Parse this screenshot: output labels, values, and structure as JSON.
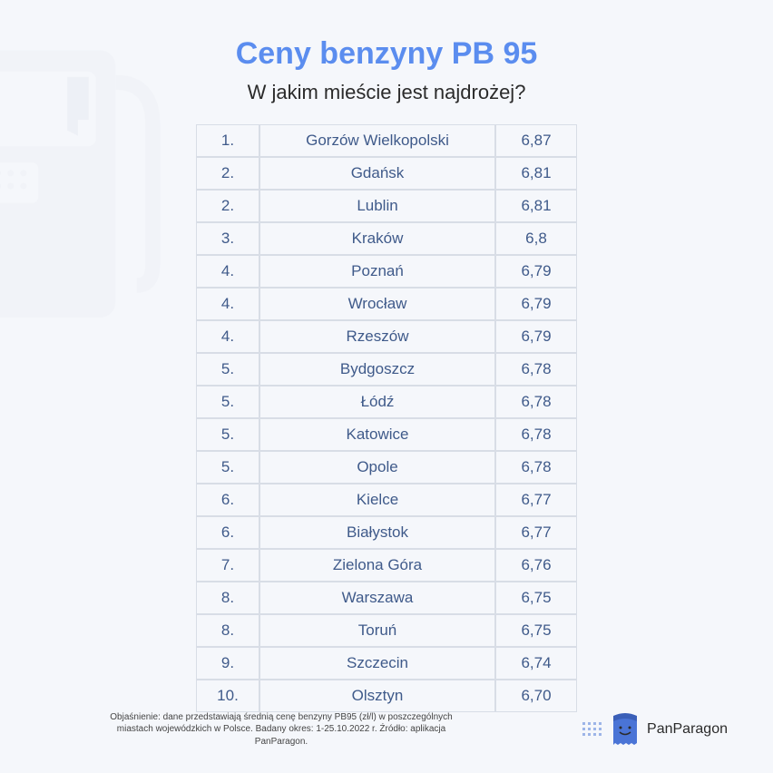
{
  "title": "Ceny benzyny PB 95",
  "subtitle": "W jakim mieście jest najdrożej?",
  "footnote": "Objaśnienie: dane przedstawiają średnią cenę benzyny PB95 (zł/l) w poszczególnych miastach wojewódzkich w Polsce. Badany okres: 1-25.10.2022 r. Źródło: aplikacja PanParagon.",
  "logo_text": "PanParagon",
  "colors": {
    "title": "#5b8def",
    "subtitle": "#2b2b2b",
    "cell_text": "#3f5a8a",
    "cell_border": "#d8dde6",
    "background": "#f5f7fb",
    "logo_accent": "#4a74d6"
  },
  "table": {
    "columns": [
      "rank",
      "city",
      "price"
    ],
    "rows": [
      {
        "rank": "1.",
        "city": "Gorzów Wielkopolski",
        "price": "6,87"
      },
      {
        "rank": "2.",
        "city": "Gdańsk",
        "price": "6,81"
      },
      {
        "rank": "2.",
        "city": "Lublin",
        "price": "6,81"
      },
      {
        "rank": "3.",
        "city": "Kraków",
        "price": "6,8"
      },
      {
        "rank": "4.",
        "city": "Poznań",
        "price": "6,79"
      },
      {
        "rank": "4.",
        "city": "Wrocław",
        "price": "6,79"
      },
      {
        "rank": "4.",
        "city": "Rzeszów",
        "price": "6,79"
      },
      {
        "rank": "5.",
        "city": "Bydgoszcz",
        "price": "6,78"
      },
      {
        "rank": "5.",
        "city": "Łódź",
        "price": "6,78"
      },
      {
        "rank": "5.",
        "city": "Katowice",
        "price": "6,78"
      },
      {
        "rank": "5.",
        "city": "Opole",
        "price": "6,78"
      },
      {
        "rank": "6.",
        "city": "Kielce",
        "price": "6,77"
      },
      {
        "rank": "6.",
        "city": "Białystok",
        "price": "6,77"
      },
      {
        "rank": "7.",
        "city": "Zielona Góra",
        "price": "6,76"
      },
      {
        "rank": "8.",
        "city": "Warszawa",
        "price": "6,75"
      },
      {
        "rank": "8.",
        "city": "Toruń",
        "price": "6,75"
      },
      {
        "rank": "9.",
        "city": "Szczecin",
        "price": "6,74"
      },
      {
        "rank": "10.",
        "city": "Olsztyn",
        "price": "6,70"
      }
    ]
  }
}
